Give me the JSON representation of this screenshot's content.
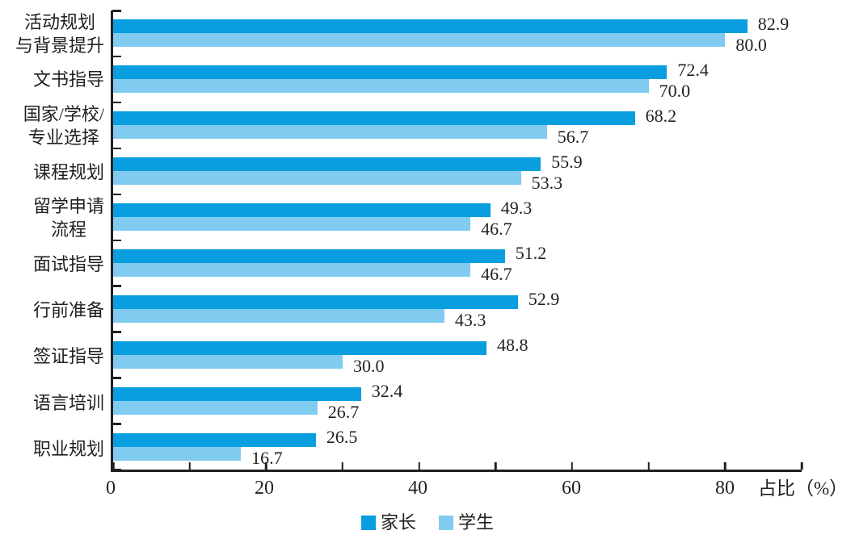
{
  "chart_data": {
    "type": "bar",
    "orientation": "horizontal",
    "title": "",
    "xlabel": "占比（%）",
    "grid": false,
    "legend_position": "bottom-center",
    "x_axis": {
      "max": 90,
      "minor_tick_step": 10,
      "labeled_ticks": [
        0,
        20,
        40,
        60,
        80
      ]
    },
    "categories": [
      "活动规划与背景提升",
      "文书指导",
      "国家/学校/专业选择",
      "课程规划",
      "留学申请流程",
      "面试指导",
      "行前准备",
      "签证指导",
      "语言培训",
      "职业规划"
    ],
    "category_lines": [
      [
        "活动规划",
        "与背景提升"
      ],
      [
        "文书指导"
      ],
      [
        "国家/学校/",
        "专业选择"
      ],
      [
        "课程规划"
      ],
      [
        "留学申请",
        "流程"
      ],
      [
        "面试指导"
      ],
      [
        "行前准备"
      ],
      [
        "签证指导"
      ],
      [
        "语言培训"
      ],
      [
        "职业规划"
      ]
    ],
    "series": [
      {
        "name": "家长",
        "color": "#089edf",
        "values": [
          82.9,
          72.4,
          68.2,
          55.9,
          49.3,
          51.2,
          52.9,
          48.8,
          32.4,
          26.5
        ]
      },
      {
        "name": "学生",
        "color": "#82cbf0",
        "values": [
          80.0,
          70.0,
          56.7,
          53.3,
          46.7,
          46.7,
          43.3,
          30.0,
          26.7,
          16.7
        ]
      }
    ],
    "value_label_decimals": 1
  },
  "colors": {
    "axis": "#231f20",
    "text": "#231f20",
    "background": "#ffffff",
    "parent_bar": "#089edf",
    "student_bar": "#82cbf0"
  }
}
